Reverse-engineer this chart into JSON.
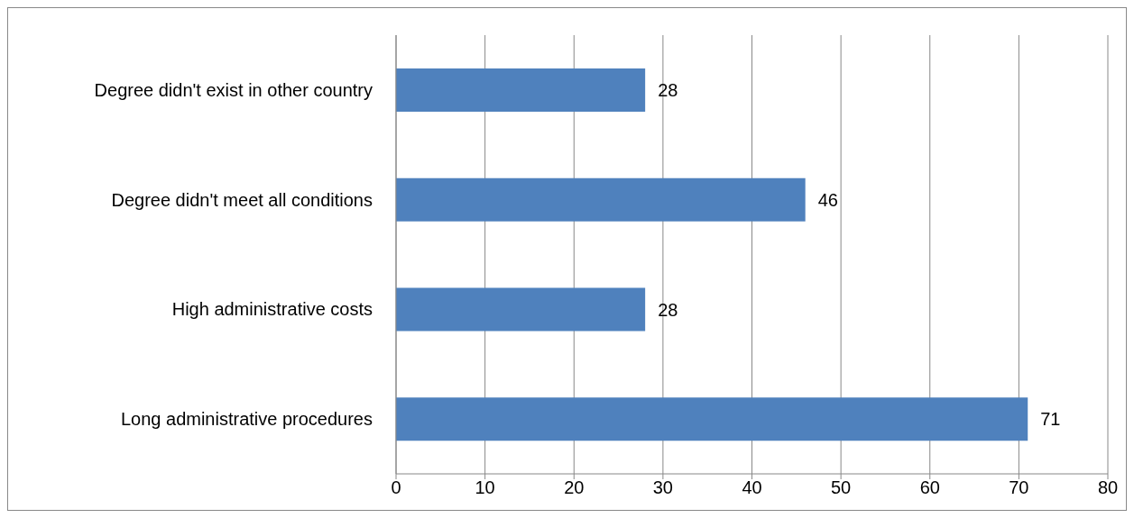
{
  "chart_data": {
    "type": "bar",
    "orientation": "horizontal",
    "categories": [
      "Degree didn't exist in other country",
      "Degree didn't meet all conditions",
      "High administrative costs",
      "Long administrative procedures"
    ],
    "values": [
      28,
      46,
      28,
      71
    ],
    "color": "#4f81bd",
    "xlim": [
      0,
      80
    ],
    "xticks": [
      0,
      10,
      20,
      30,
      40,
      50,
      60,
      70,
      80
    ],
    "grid": "x",
    "data_labels": true
  }
}
